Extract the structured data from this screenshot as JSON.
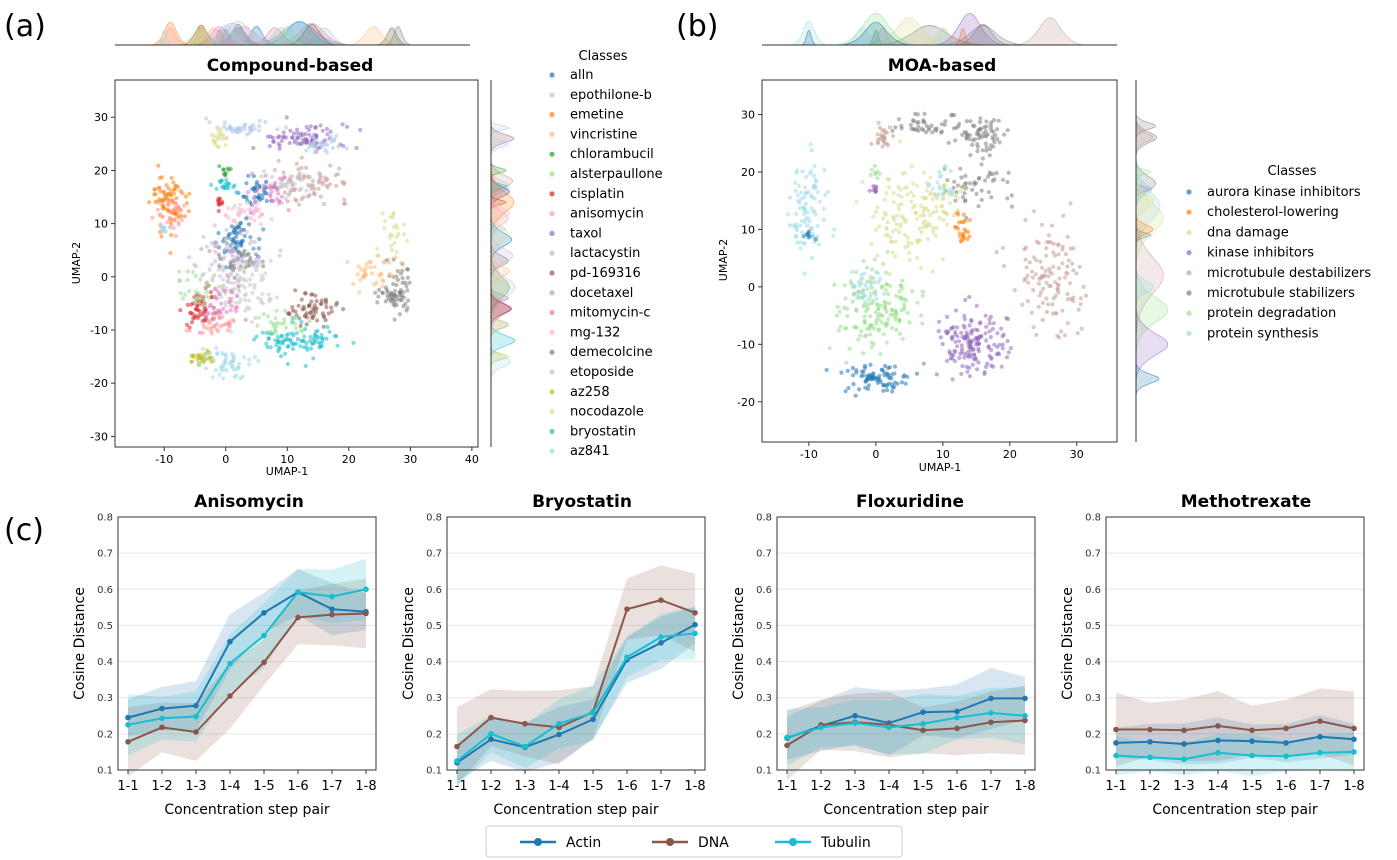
{
  "panels": {
    "a": "(a)",
    "b": "(b)",
    "c": "(c)"
  },
  "umap_compound": {
    "title": "Compound-based",
    "xlabel": "UMAP-1",
    "ylabel": "UMAP-2",
    "xticks": [
      -10,
      0,
      10,
      20,
      30,
      40
    ],
    "yticks": [
      -30,
      -20,
      -10,
      0,
      10,
      20,
      30
    ],
    "legend_title": "Classes",
    "classes": [
      {
        "name": "alln",
        "color": "#1f77b4"
      },
      {
        "name": "epothilone-b",
        "color": "#aec7e8"
      },
      {
        "name": "emetine",
        "color": "#ff7f0e"
      },
      {
        "name": "vincristine",
        "color": "#ffbb78"
      },
      {
        "name": "chlorambucil",
        "color": "#2ca02c"
      },
      {
        "name": "alsterpaullone",
        "color": "#98df8a"
      },
      {
        "name": "cisplatin",
        "color": "#d62728"
      },
      {
        "name": "anisomycin",
        "color": "#ff9896"
      },
      {
        "name": "taxol",
        "color": "#9467bd"
      },
      {
        "name": "lactacystin",
        "color": "#c5b0d5"
      },
      {
        "name": "pd-169316",
        "color": "#8c564b"
      },
      {
        "name": "docetaxel",
        "color": "#c49c94"
      },
      {
        "name": "mitomycin-c",
        "color": "#e377c2"
      },
      {
        "name": "mg-132",
        "color": "#f7b6d2"
      },
      {
        "name": "demecolcine",
        "color": "#7f7f7f"
      },
      {
        "name": "etoposide",
        "color": "#c7c7c7"
      },
      {
        "name": "az258",
        "color": "#bcbd22"
      },
      {
        "name": "nocodazole",
        "color": "#dbdb8d"
      },
      {
        "name": "bryostatin",
        "color": "#17becf"
      },
      {
        "name": "az841",
        "color": "#9edae5"
      }
    ]
  },
  "umap_moa": {
    "title": "MOA-based",
    "xlabel": "UMAP-1",
    "ylabel": "UMAP-2",
    "xticks": [
      -10,
      0,
      10,
      20,
      30
    ],
    "yticks": [
      -20,
      -10,
      0,
      10,
      20,
      30
    ],
    "legend_title": "Classes",
    "classes": [
      {
        "name": "aurora kinase inhibitors",
        "color": "#1f77b4"
      },
      {
        "name": "cholesterol-lowering",
        "color": "#ff7f0e"
      },
      {
        "name": "dna damage",
        "color": "#dbdb8d"
      },
      {
        "name": "kinase inhibitors",
        "color": "#9467bd"
      },
      {
        "name": "microtubule destabilizers",
        "color": "#c49c94"
      },
      {
        "name": "microtubule stabilizers",
        "color": "#7f7f7f"
      },
      {
        "name": "protein degradation",
        "color": "#98df8a"
      },
      {
        "name": "protein synthesis",
        "color": "#9edae5"
      }
    ]
  },
  "chart_data": [
    {
      "type": "line",
      "title": "Anisomycin",
      "xlabel": "Concentration step pair",
      "ylabel": "Cosine Distance",
      "categories": [
        "1-1",
        "1-2",
        "1-3",
        "1-4",
        "1-5",
        "1-6",
        "1-7",
        "1-8"
      ],
      "ylim": [
        0.1,
        0.8
      ],
      "yticks": [
        "0.1",
        "0.2",
        "0.3",
        "0.4",
        "0.5",
        "0.6",
        "0.7",
        "0.8"
      ],
      "series": [
        {
          "name": "Actin",
          "color": "#1f77b4",
          "values": [
            0.245,
            0.27,
            0.278,
            0.455,
            0.535,
            0.592,
            0.545,
            0.538
          ],
          "band": 0.06
        },
        {
          "name": "DNA",
          "color": "#8c564b",
          "values": [
            0.178,
            0.218,
            0.205,
            0.305,
            0.398,
            0.522,
            0.53,
            0.533
          ],
          "band": 0.075
        },
        {
          "name": "Tubulin",
          "color": "#17becf",
          "values": [
            0.225,
            0.243,
            0.248,
            0.395,
            0.472,
            0.592,
            0.58,
            0.6
          ],
          "band": 0.07
        }
      ]
    },
    {
      "type": "line",
      "title": "Bryostatin",
      "xlabel": "Concentration step pair",
      "ylabel": "Cosine Distance",
      "categories": [
        "1-1",
        "1-2",
        "1-3",
        "1-4",
        "1-5",
        "1-6",
        "1-7",
        "1-8"
      ],
      "ylim": [
        0.1,
        0.8
      ],
      "yticks": [
        "0.1",
        "0.2",
        "0.3",
        "0.4",
        "0.5",
        "0.6",
        "0.7",
        "0.8"
      ],
      "series": [
        {
          "name": "Actin",
          "color": "#1f77b4",
          "values": [
            0.12,
            0.185,
            0.163,
            0.198,
            0.24,
            0.405,
            0.452,
            0.502
          ],
          "band": 0.06
        },
        {
          "name": "DNA",
          "color": "#8c564b",
          "values": [
            0.165,
            0.245,
            0.228,
            0.218,
            0.26,
            0.545,
            0.57,
            0.535
          ],
          "band": 0.085
        },
        {
          "name": "Tubulin",
          "color": "#17becf",
          "values": [
            0.125,
            0.2,
            0.165,
            0.228,
            0.258,
            0.412,
            0.468,
            0.478
          ],
          "band": 0.06
        }
      ]
    },
    {
      "type": "line",
      "title": "Floxuridine",
      "xlabel": "Concentration step pair",
      "ylabel": "Cosine Distance",
      "categories": [
        "1-1",
        "1-2",
        "1-3",
        "1-4",
        "1-5",
        "1-6",
        "1-7",
        "1-8"
      ],
      "ylim": [
        0.1,
        0.8
      ],
      "yticks": [
        "0.1",
        "0.2",
        "0.3",
        "0.4",
        "0.5",
        "0.6",
        "0.7",
        "0.8"
      ],
      "series": [
        {
          "name": "Actin",
          "color": "#1f77b4",
          "values": [
            0.188,
            0.222,
            0.25,
            0.23,
            0.26,
            0.262,
            0.298,
            0.298
          ],
          "band": 0.07
        },
        {
          "name": "DNA",
          "color": "#8c564b",
          "values": [
            0.168,
            0.225,
            0.232,
            0.225,
            0.21,
            0.215,
            0.232,
            0.237
          ],
          "band": 0.075
        },
        {
          "name": "Tubulin",
          "color": "#17becf",
          "values": [
            0.19,
            0.218,
            0.23,
            0.218,
            0.228,
            0.245,
            0.258,
            0.25
          ],
          "band": 0.065
        }
      ]
    },
    {
      "type": "line",
      "title": "Methotrexate",
      "xlabel": "Concentration step pair",
      "ylabel": "Cosine Distance",
      "categories": [
        "1-1",
        "1-2",
        "1-3",
        "1-4",
        "1-5",
        "1-6",
        "1-7",
        "1-8"
      ],
      "ylim": [
        0.1,
        0.8
      ],
      "yticks": [
        "0.1",
        "0.2",
        "0.3",
        "0.4",
        "0.5",
        "0.6",
        "0.7",
        "0.8"
      ],
      "series": [
        {
          "name": "Actin",
          "color": "#1f77b4",
          "values": [
            0.175,
            0.178,
            0.172,
            0.182,
            0.18,
            0.175,
            0.192,
            0.185
          ],
          "band": 0.05
        },
        {
          "name": "DNA",
          "color": "#8c564b",
          "values": [
            0.212,
            0.212,
            0.21,
            0.222,
            0.21,
            0.215,
            0.235,
            0.215
          ],
          "band": 0.08
        },
        {
          "name": "Tubulin",
          "color": "#17becf",
          "values": [
            0.14,
            0.135,
            0.13,
            0.148,
            0.14,
            0.138,
            0.148,
            0.15
          ],
          "band": 0.045
        }
      ]
    }
  ],
  "legend_bottom": [
    {
      "name": "Actin",
      "color": "#1f77b4"
    },
    {
      "name": "DNA",
      "color": "#8c564b"
    },
    {
      "name": "Tubulin",
      "color": "#17becf"
    }
  ]
}
